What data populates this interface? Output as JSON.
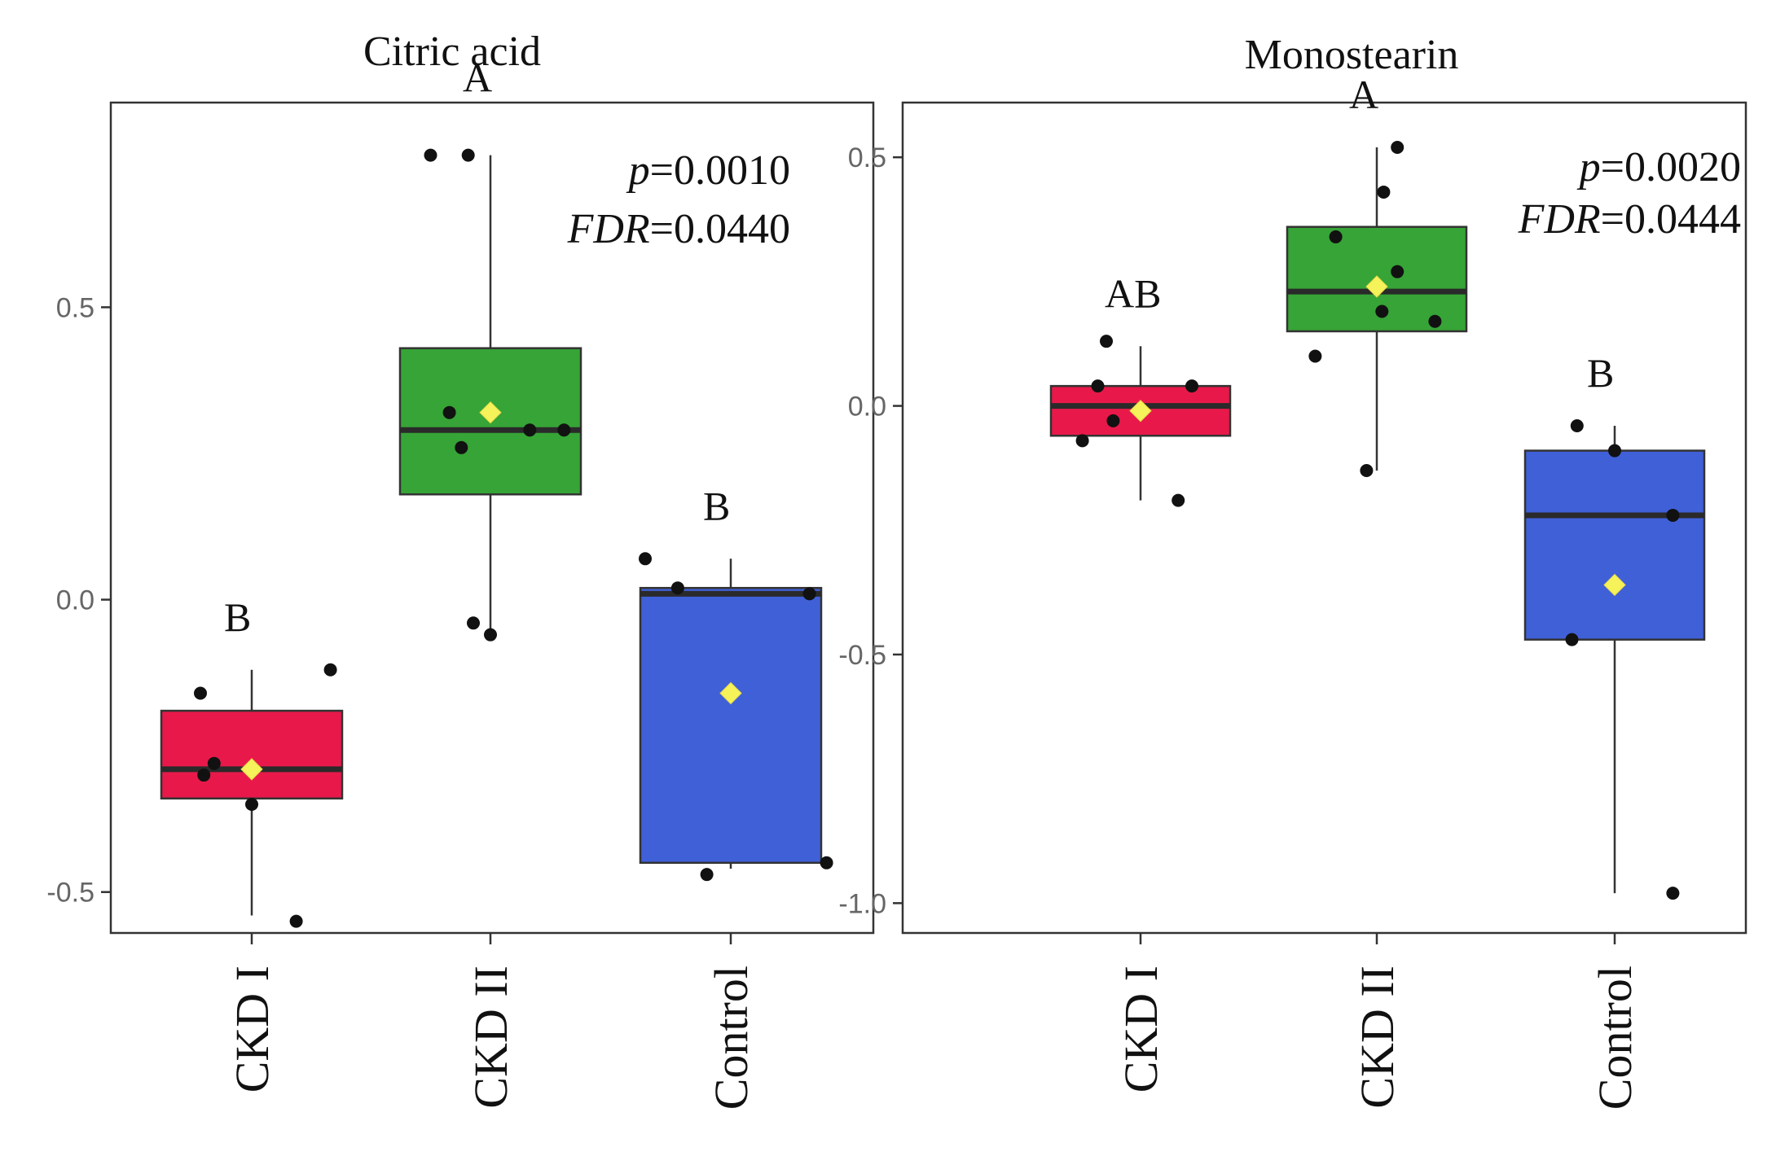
{
  "chart_data": [
    {
      "type": "box",
      "title": "Citric acid",
      "xlabel": "",
      "ylabel": "",
      "categories": [
        "CKD I",
        "CKD II",
        "Control"
      ],
      "ylim": [
        -0.57,
        0.85
      ],
      "yticks": [
        -0.5,
        0.0,
        0.5
      ],
      "ytick_labels": [
        "-0.5",
        "0.0",
        "0.5"
      ],
      "colors": [
        "#e8194a",
        "#36a436",
        "#4060d8"
      ],
      "boxes": [
        {
          "category": "CKD I",
          "whisker_low": -0.54,
          "q1": -0.34,
          "median": -0.29,
          "q3": -0.19,
          "whisker_high": -0.12,
          "mean": -0.29,
          "letter": "B"
        },
        {
          "category": "CKD II",
          "whisker_low": -0.06,
          "q1": 0.18,
          "median": 0.29,
          "q3": 0.43,
          "whisker_high": 0.76,
          "mean": 0.32,
          "letter": "A"
        },
        {
          "category": "Control",
          "whisker_low": -0.46,
          "q1": -0.45,
          "median": 0.01,
          "q3": 0.02,
          "whisker_high": 0.07,
          "mean": -0.16,
          "letter": "B"
        }
      ],
      "points": [
        {
          "group": 0,
          "offset": -0.3,
          "y": -0.16
        },
        {
          "group": 0,
          "offset": -0.28,
          "y": -0.3
        },
        {
          "group": 0,
          "offset": -0.22,
          "y": -0.28
        },
        {
          "group": 0,
          "offset": 0.0,
          "y": -0.35
        },
        {
          "group": 0,
          "offset": 0.26,
          "y": -0.55
        },
        {
          "group": 0,
          "offset": 0.46,
          "y": -0.12
        },
        {
          "group": 1,
          "offset": -0.35,
          "y": 0.76
        },
        {
          "group": 1,
          "offset": -0.13,
          "y": 0.76
        },
        {
          "group": 1,
          "offset": -0.24,
          "y": 0.32
        },
        {
          "group": 1,
          "offset": -0.17,
          "y": 0.26
        },
        {
          "group": 1,
          "offset": 0.23,
          "y": 0.29
        },
        {
          "group": 1,
          "offset": 0.43,
          "y": 0.29
        },
        {
          "group": 1,
          "offset": -0.1,
          "y": -0.04
        },
        {
          "group": 1,
          "offset": 0.0,
          "y": -0.06
        },
        {
          "group": 2,
          "offset": -0.5,
          "y": 0.07
        },
        {
          "group": 2,
          "offset": -0.31,
          "y": 0.02
        },
        {
          "group": 2,
          "offset": 0.46,
          "y": 0.01
        },
        {
          "group": 2,
          "offset": -0.14,
          "y": -0.47
        },
        {
          "group": 2,
          "offset": 0.56,
          "y": -0.45
        }
      ],
      "annotation": {
        "p_label": "p",
        "p_value": "=0.0010",
        "fdr_label": "FDR",
        "fdr_value": "=0.0440"
      }
    },
    {
      "type": "box",
      "title": "Monostearin",
      "xlabel": "",
      "ylabel": "",
      "categories": [
        "CKD I",
        "CKD II",
        "Control"
      ],
      "ylim": [
        -1.06,
        0.61
      ],
      "yticks": [
        -1.0,
        -0.5,
        0.0,
        0.5
      ],
      "ytick_labels": [
        "-1.0",
        "-0.5",
        "0.0",
        "0.5"
      ],
      "colors": [
        "#e8194a",
        "#36a436",
        "#4060d8"
      ],
      "boxes": [
        {
          "category": "CKD I",
          "whisker_low": -0.19,
          "q1": -0.06,
          "median": 0.0,
          "q3": 0.04,
          "whisker_high": 0.12,
          "mean": -0.01,
          "letter": "AB"
        },
        {
          "category": "CKD II",
          "whisker_low": -0.13,
          "q1": 0.15,
          "median": 0.23,
          "q3": 0.36,
          "whisker_high": 0.52,
          "mean": 0.24,
          "letter": "A"
        },
        {
          "category": "Control",
          "whisker_low": -0.98,
          "q1": -0.47,
          "median": -0.22,
          "q3": -0.09,
          "whisker_high": -0.04,
          "mean": -0.36,
          "letter": "B"
        }
      ],
      "points": [
        {
          "group": 0,
          "offset": -0.34,
          "y": -0.07
        },
        {
          "group": 0,
          "offset": -0.25,
          "y": 0.04
        },
        {
          "group": 0,
          "offset": -0.2,
          "y": 0.13
        },
        {
          "group": 0,
          "offset": -0.16,
          "y": -0.03
        },
        {
          "group": 0,
          "offset": 0.22,
          "y": -0.19
        },
        {
          "group": 0,
          "offset": 0.3,
          "y": 0.04
        },
        {
          "group": 1,
          "offset": -0.36,
          "y": 0.1
        },
        {
          "group": 1,
          "offset": -0.24,
          "y": 0.34
        },
        {
          "group": 1,
          "offset": 0.04,
          "y": 0.43
        },
        {
          "group": 1,
          "offset": 0.12,
          "y": 0.52
        },
        {
          "group": 1,
          "offset": 0.12,
          "y": 0.27
        },
        {
          "group": 1,
          "offset": 0.03,
          "y": 0.19
        },
        {
          "group": 1,
          "offset": 0.34,
          "y": 0.17
        },
        {
          "group": 1,
          "offset": -0.06,
          "y": -0.13
        },
        {
          "group": 2,
          "offset": -0.22,
          "y": -0.04
        },
        {
          "group": 2,
          "offset": 0.0,
          "y": -0.09
        },
        {
          "group": 2,
          "offset": 0.34,
          "y": -0.22
        },
        {
          "group": 2,
          "offset": -0.25,
          "y": -0.47
        },
        {
          "group": 2,
          "offset": 0.34,
          "y": -0.98
        }
      ],
      "annotation": {
        "p_label": "p",
        "p_value": "=0.0020",
        "fdr_label": "FDR",
        "fdr_value": "=0.0444"
      }
    }
  ]
}
